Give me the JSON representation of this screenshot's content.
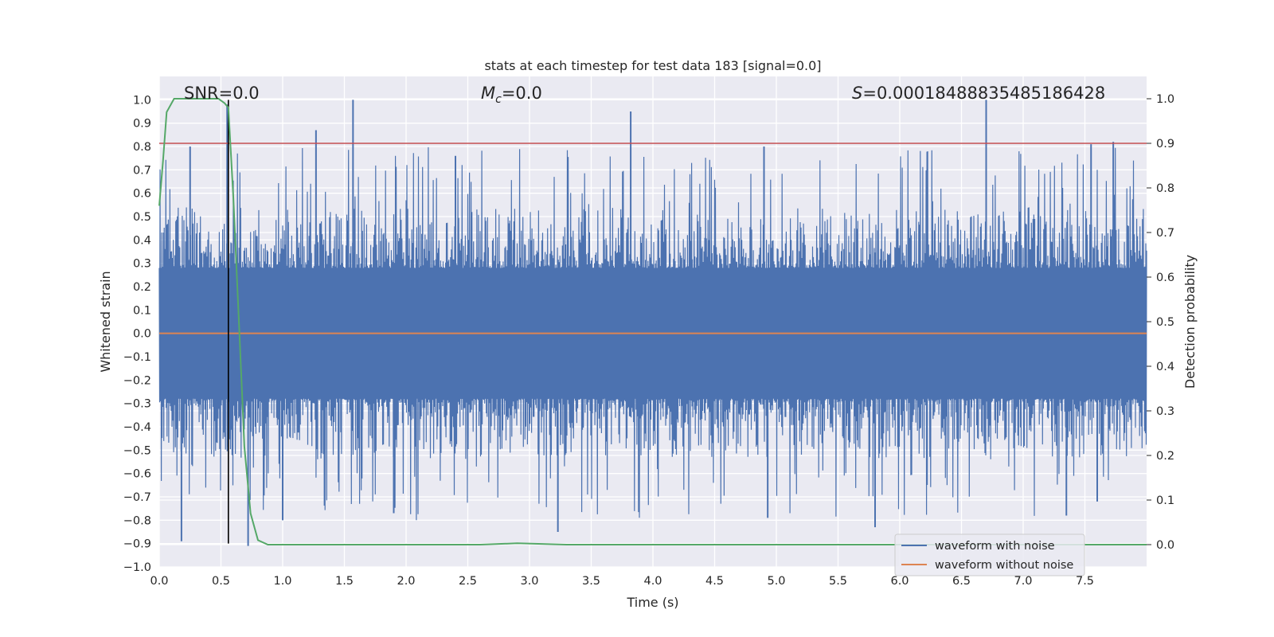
{
  "chart_data": {
    "type": "line",
    "title": "stats at each timestep for test data 183 [signal=0.0]",
    "xlabel": "Time (s)",
    "ylabel": "Whitened strain",
    "y2label": "Detection probability",
    "xlim": [
      0.0,
      8.0
    ],
    "ylim": [
      -1.0,
      1.1
    ],
    "y2lim": [
      -0.05,
      1.05
    ],
    "x_ticks": [
      "0.0",
      "0.5",
      "1.0",
      "1.5",
      "2.0",
      "2.5",
      "3.0",
      "3.5",
      "4.0",
      "4.5",
      "5.0",
      "5.5",
      "6.0",
      "6.5",
      "7.0",
      "7.5"
    ],
    "y_ticks": [
      "1.0",
      "0.9",
      "0.8",
      "0.7",
      "0.6",
      "0.5",
      "0.4",
      "0.3",
      "0.2",
      "0.1",
      "0.0",
      "−0.1",
      "−0.2",
      "−0.3",
      "−0.4",
      "−0.5",
      "−0.6",
      "−0.7",
      "−0.8",
      "−0.9",
      "−1.0"
    ],
    "y2_ticks": [
      "1.0",
      "0.9",
      "0.8",
      "0.7",
      "0.6",
      "0.5",
      "0.4",
      "0.3",
      "0.2",
      "0.1",
      "0.0"
    ],
    "grid": true,
    "legend_position": "lower-right",
    "annotations": {
      "snr": "SNR=0.0",
      "mc_symbol": "M",
      "mc_sub": "c",
      "mc_value": "=0.0",
      "s_symbol": "S",
      "s_value": "=0.00018488835485186428"
    },
    "series": [
      {
        "name": "waveform with noise",
        "color": "#4c72b0",
        "axis": "left",
        "kind": "noise",
        "envelope_typical": 0.42,
        "peak_max": 1.0,
        "trough_min": -0.91,
        "peaks": [
          [
            0.55,
            0.98
          ],
          [
            1.27,
            0.87
          ],
          [
            1.57,
            1.0
          ],
          [
            3.82,
            0.95
          ],
          [
            4.9,
            0.8
          ],
          [
            6.7,
            1.0
          ],
          [
            7.55,
            0.81
          ],
          [
            7.73,
            0.82
          ],
          [
            0.25,
            0.8
          ],
          [
            2.4,
            0.76
          ]
        ],
        "troughs": [
          [
            0.18,
            -0.89
          ],
          [
            0.72,
            -0.91
          ],
          [
            1.0,
            -0.8
          ],
          [
            1.9,
            -0.77
          ],
          [
            3.23,
            -0.85
          ],
          [
            4.93,
            -0.79
          ],
          [
            5.8,
            -0.83
          ],
          [
            7.35,
            -0.78
          ],
          [
            7.6,
            -0.72
          ]
        ]
      },
      {
        "name": "waveform without noise",
        "color": "#dd8452",
        "axis": "left",
        "x": [
          0.0,
          8.0
        ],
        "y": [
          0.0,
          0.0
        ]
      },
      {
        "name": "",
        "color": "#55a868",
        "axis": "right",
        "x": [
          0.0,
          0.03,
          0.06,
          0.12,
          0.2,
          0.3,
          0.4,
          0.48,
          0.53,
          0.56,
          0.6,
          0.65,
          0.69,
          0.74,
          0.8,
          0.88,
          1.0,
          2.0,
          2.6,
          2.9,
          3.3,
          4.0,
          6.0,
          8.0
        ],
        "y": [
          0.76,
          0.86,
          0.97,
          1.0,
          1.0,
          1.0,
          1.0,
          1.0,
          0.99,
          0.98,
          0.78,
          0.47,
          0.22,
          0.07,
          0.01,
          0.0,
          0.0,
          0.0,
          0.0,
          0.003,
          0.0,
          0.0,
          0.0,
          0.0
        ]
      }
    ],
    "hlines_right": [
      {
        "y": 0.9,
        "color": "#c44e52"
      }
    ],
    "vlines": [
      {
        "x": 0.56,
        "y_from": -0.9,
        "y_to": 1.0,
        "color": "#000000"
      }
    ]
  }
}
